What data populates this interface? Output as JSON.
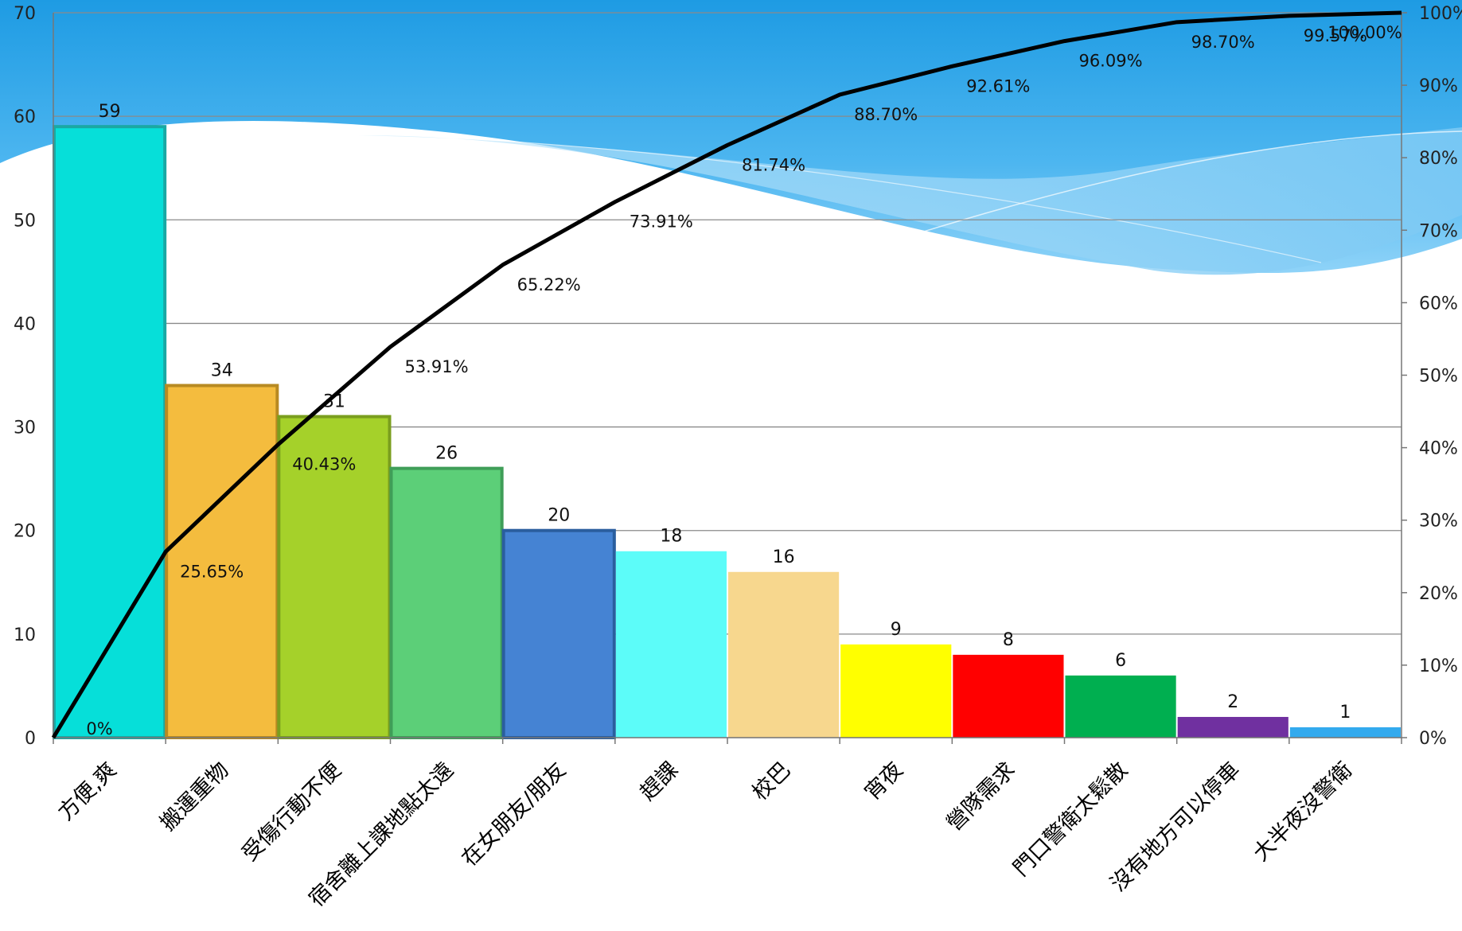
{
  "chart_data": {
    "type": "bar",
    "categories": [
      "方便,爽",
      "搬運重物",
      "受傷行動不便",
      "宿舍離上課地點太遠",
      "在女朋友/朋友",
      "趕課",
      "校巴",
      "宵夜",
      "營隊需求",
      "門口警衛太鬆散",
      "沒有地方可以停車",
      "大半夜沒警衛"
    ],
    "values": [
      59,
      34,
      31,
      26,
      20,
      18,
      16,
      9,
      8,
      6,
      2,
      1
    ],
    "bar_colors": [
      "#06DFD9",
      "#F4BC3E",
      "#A5D12A",
      "#5CCF78",
      "#4583D3",
      "#5CFCF9",
      "#F7D78E",
      "#FFFF00",
      "#FF0000",
      "#00AF50",
      "#7030A0",
      "#33AAEE"
    ],
    "bar_edge_colors": [
      "#1AA8A4",
      "#B88A22",
      "#7A9E1E",
      "#3F9E58",
      "#2A5E9E",
      "",
      "",
      "",
      "",
      "",
      "",
      ""
    ],
    "cumulative_percent": [
      0,
      25.65,
      40.43,
      53.91,
      65.22,
      73.91,
      81.74,
      88.7,
      92.61,
      96.09,
      98.7,
      99.57,
      100.0
    ],
    "cumulative_labels": [
      "0%",
      "25.65%",
      "40.43%",
      "53.91%",
      "65.22%",
      "73.91%",
      "81.74%",
      "88.70%",
      "92.61%",
      "96.09%",
      "98.70%",
      "99.57%",
      "100.00%"
    ],
    "ylim": [
      0,
      70
    ],
    "y_ticks": [
      "0",
      "10",
      "20",
      "30",
      "40",
      "50",
      "60",
      "70"
    ],
    "y2lim": [
      0,
      100
    ],
    "y2_ticks": [
      "0%",
      "10%",
      "20%",
      "30%",
      "40%",
      "50%",
      "60%",
      "70%",
      "80%",
      "90%",
      "100%"
    ],
    "line_color": "#000000",
    "grid": true
  }
}
